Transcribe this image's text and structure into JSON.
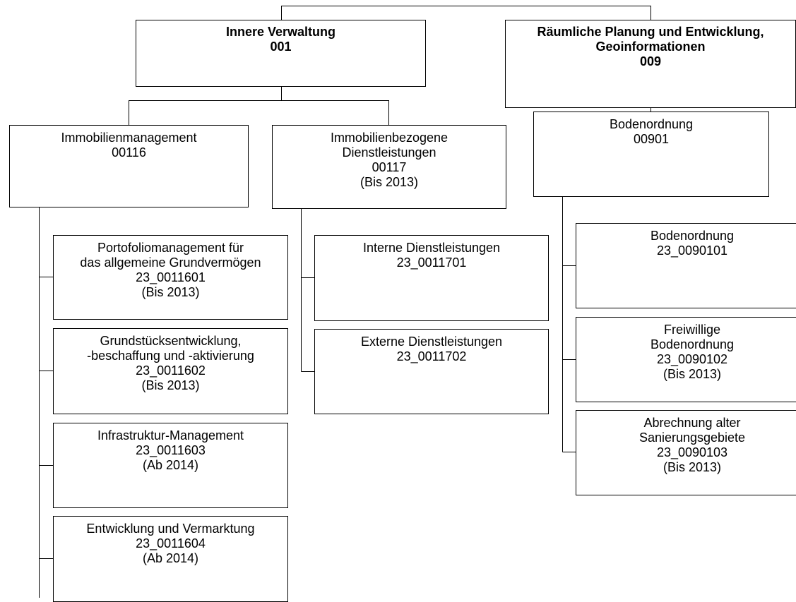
{
  "units": {
    "root_001": {
      "lines": [
        "Innere Verwaltung",
        "001"
      ]
    },
    "root_009": {
      "lines": [
        "Räumliche Planung und Entwicklung,",
        "Geoinformationen",
        "009"
      ]
    },
    "u_00116": {
      "lines": [
        "Immobilienmanagement",
        "00116"
      ]
    },
    "u_00117": {
      "lines": [
        "Immobilienbezogene",
        "Dienstleistungen",
        "00117",
        "(Bis 2013)"
      ]
    },
    "u_00901": {
      "lines": [
        "Bodenordnung",
        "00901"
      ]
    },
    "u_0011601": {
      "lines": [
        "Portofoliomanagement für",
        "das allgemeine Grundvermögen",
        "23_0011601",
        "(Bis 2013)"
      ]
    },
    "u_0011602": {
      "lines": [
        "Grundstücksentwicklung,",
        "-beschaffung und -aktivierung",
        "23_0011602",
        "(Bis 2013)"
      ]
    },
    "u_0011603": {
      "lines": [
        "Infrastruktur-Management",
        "23_0011603",
        "(Ab 2014)"
      ]
    },
    "u_0011604": {
      "lines": [
        "Entwicklung und Vermarktung",
        "23_0011604",
        "(Ab 2014)"
      ]
    },
    "u_0011701": {
      "lines": [
        "Interne Dienstleistungen",
        "23_0011701"
      ]
    },
    "u_0011702": {
      "lines": [
        "Externe Dienstleistungen",
        "23_0011702"
      ]
    },
    "u_0090101": {
      "lines": [
        "Bodenordnung",
        "23_0090101"
      ]
    },
    "u_0090102": {
      "lines": [
        "Freiwillige",
        "Bodenordnung",
        "23_0090102",
        "(Bis 2013)"
      ]
    },
    "u_0090103": {
      "lines": [
        "Abrechnung alter",
        "Sanierungsgebiete",
        "23_0090103",
        "(Bis 2013)"
      ]
    }
  }
}
